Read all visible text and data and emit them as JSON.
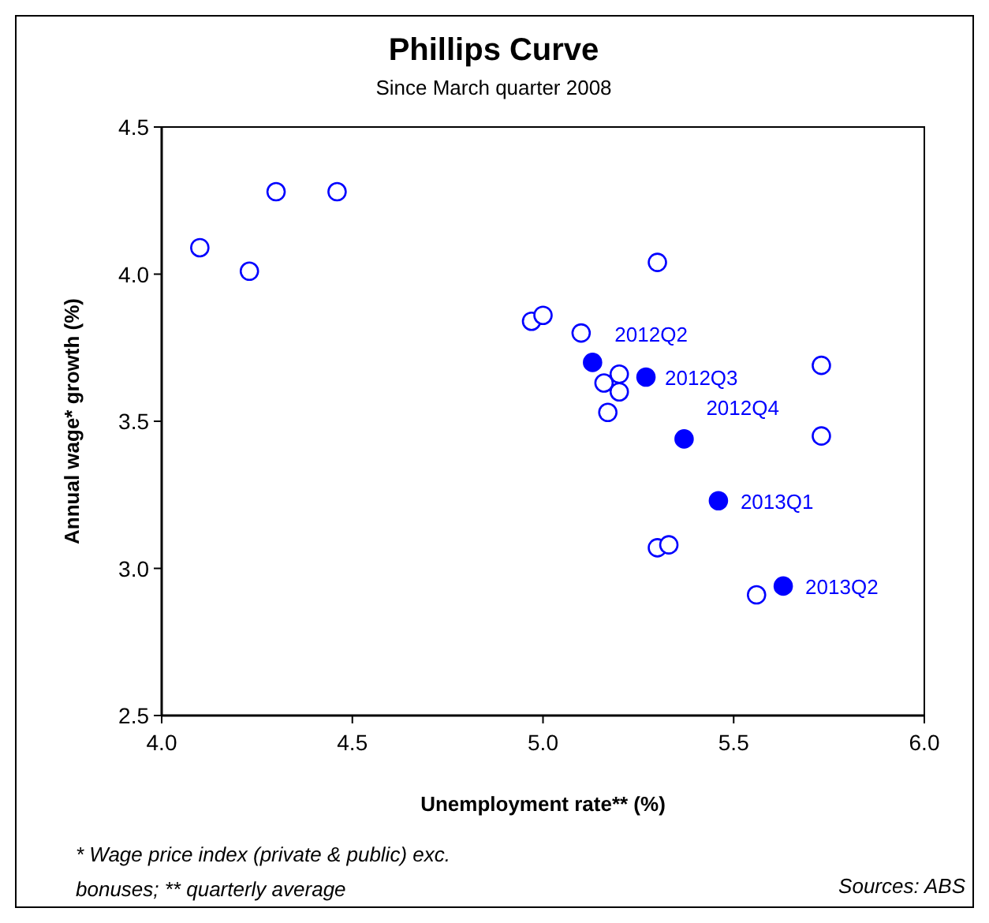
{
  "chart_data": {
    "type": "scatter",
    "title": "Phillips Curve",
    "subtitle": "Since March quarter 2008",
    "xlabel": "Unemployment rate** (%)",
    "ylabel": "Annual wage* growth (%)",
    "xlim": [
      4.0,
      6.0
    ],
    "xticks": [
      {
        "value": 4,
        "label": "4.0"
      },
      4.5,
      {
        "value": 5,
        "label": "5.0"
      },
      5.5,
      {
        "value": 6,
        "label": "6.0"
      }
    ],
    "ylim": [
      2.5,
      4.5
    ],
    "yticks": [
      2.5,
      {
        "value": 3,
        "label": "3.0"
      },
      3.5,
      {
        "value": 4,
        "label": "4.0"
      },
      4.5
    ],
    "grid": false,
    "marker": "circle",
    "series": [
      {
        "color": "#0000ff",
        "x": [
          4.1,
          4.23,
          4.3,
          4.46,
          4.97,
          5.0,
          5.3,
          5.1,
          5.2,
          5.16,
          5.2,
          5.17,
          5.73,
          5.73,
          5.3,
          5.33,
          5.56
        ],
        "values": [
          4.09,
          4.01,
          4.28,
          4.28,
          3.84,
          3.86,
          4.04,
          3.8,
          3.66,
          3.63,
          3.6,
          3.53,
          3.69,
          3.45,
          3.07,
          3.08,
          2.91
        ]
      },
      {
        "color": "#0000ff",
        "x": [
          5.13,
          5.27,
          5.37,
          5.46,
          5.63
        ],
        "values": [
          3.7,
          3.65,
          3.44,
          3.23,
          2.94
        ]
      }
    ],
    "annotations": [
      {
        "text": "2012Q2",
        "x": 5.13,
        "y": 3.7
      },
      {
        "text": "2012Q3",
        "x": 5.27,
        "y": 3.65
      },
      {
        "text": "2012Q4",
        "x": 5.37,
        "y": 3.44
      },
      {
        "text": "2013Q1",
        "x": 5.46,
        "y": 3.23
      },
      {
        "text": "2013Q2",
        "x": 5.63,
        "y": 2.94
      },
      "* Wage price index (private & public) exc. bonuses; ** quarterly average",
      "Sources: ABS"
    ]
  }
}
